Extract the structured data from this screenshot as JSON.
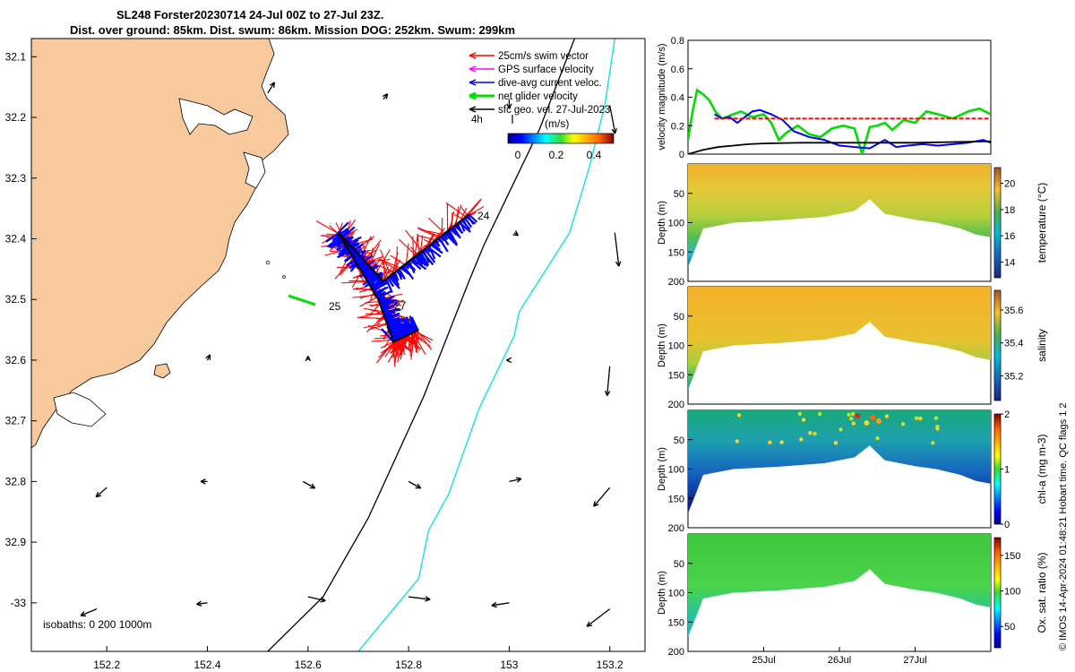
{
  "title": {
    "line1": "SL248 Forster20230714 24-Jul 00Z to 27-Jul 23Z.",
    "line2": "Dist. over ground: 85km. Dist. swum: 86km. Mission DOG: 252km. Swum: 299km"
  },
  "footer_text": "© IMOS 14-Apr-2024 01:48:21 Hobart time. QC flags 1  2",
  "colors": {
    "land": "#f8c99c",
    "swim_vector": "#ff0000",
    "gps_velocity": "#ff00ff",
    "current": "#0000ff",
    "net_velocity": "#00dd00",
    "geo_velocity": "#000000",
    "isobath_200": "#000000",
    "isobath_1000": "#00e5e5",
    "threshold_line": "#ff0000"
  },
  "chart_data": [
    {
      "type": "scatter",
      "panel": "map",
      "x_ticks": [
        "152.2",
        "152.4",
        "152.6",
        "152.8",
        "153",
        "153.2"
      ],
      "y_ticks": [
        "32.1",
        "32.2",
        "32.3",
        "32.4",
        "32.5",
        "32.6",
        "32.7",
        "32.8",
        "32.9",
        "-33"
      ],
      "xlim": [
        152.05,
        153.27
      ],
      "ylim": [
        32.07,
        33.08
      ],
      "legend_position": "top-right",
      "legend": [
        {
          "label": "25cm/s swim vector",
          "color": "#ff0000"
        },
        {
          "label": "GPS surface velocity",
          "color": "#ff00ff"
        },
        {
          "label": "dive-avg current veloc.",
          "color": "#0000ff"
        },
        {
          "label": "net glider velocity",
          "color": "#00dd00"
        },
        {
          "label": "sfc geo. vel. 27-Jul-2023",
          "color": "#000000"
        }
      ],
      "colorbar": {
        "label": "(m/s)",
        "ticks": [
          "0",
          "0.2",
          "0.4"
        ],
        "range": [
          -0.02,
          0.5
        ]
      },
      "scale_label": "4h",
      "isobaths_label": "isobaths: 0   200  1000m",
      "track_labels": [
        "24",
        "25",
        "27"
      ],
      "glider_track": [
        {
          "lon": 152.92,
          "lat": 32.36
        },
        {
          "lon": 152.75,
          "lat": 32.47
        },
        {
          "lon": 152.66,
          "lat": 32.39
        },
        {
          "lon": 152.74,
          "lat": 32.5
        },
        {
          "lon": 152.77,
          "lat": 32.57
        },
        {
          "lon": 152.82,
          "lat": 32.55
        }
      ],
      "isobath_200m": [
        {
          "lon": 153.13,
          "lat": 32.07
        },
        {
          "lon": 153.06,
          "lat": 32.22
        },
        {
          "lon": 152.95,
          "lat": 32.41
        },
        {
          "lon": 152.92,
          "lat": 32.47
        },
        {
          "lon": 152.83,
          "lat": 32.66
        },
        {
          "lon": 152.72,
          "lat": 32.86
        },
        {
          "lon": 152.63,
          "lat": 32.99
        },
        {
          "lon": 152.52,
          "lat": 33.08
        }
      ],
      "isobath_1000m": [
        {
          "lon": 153.21,
          "lat": 32.07
        },
        {
          "lon": 153.19,
          "lat": 32.18
        },
        {
          "lon": 153.16,
          "lat": 32.28
        },
        {
          "lon": 153.12,
          "lat": 32.39
        },
        {
          "lon": 153.02,
          "lat": 32.52
        },
        {
          "lon": 153.01,
          "lat": 32.56
        },
        {
          "lon": 152.94,
          "lat": 32.68
        },
        {
          "lon": 152.88,
          "lat": 32.82
        },
        {
          "lon": 152.84,
          "lat": 32.88
        },
        {
          "lon": 152.82,
          "lat": 32.96
        },
        {
          "lon": 152.78,
          "lat": 33.0
        },
        {
          "lon": 152.7,
          "lat": 33.08
        }
      ],
      "geo_vectors": [
        {
          "lon": 152.52,
          "lat": 32.16,
          "u": 0.05,
          "v": -0.08
        },
        {
          "lon": 152.75,
          "lat": 32.17,
          "u": 0.03,
          "v": -0.04
        },
        {
          "lon": 153.0,
          "lat": 32.17,
          "u": 0.0,
          "v": 0.07
        },
        {
          "lon": 153.2,
          "lat": 32.18,
          "u": 0.04,
          "v": 0.21
        },
        {
          "lon": 153.01,
          "lat": 32.39,
          "u": 0.03,
          "v": 0.02
        },
        {
          "lon": 153.21,
          "lat": 32.39,
          "u": 0.03,
          "v": 0.25
        },
        {
          "lon": 152.4,
          "lat": 32.6,
          "u": 0.02,
          "v": -0.04
        },
        {
          "lon": 152.6,
          "lat": 32.6,
          "u": 0.0,
          "v": -0.03
        },
        {
          "lon": 153.0,
          "lat": 32.6,
          "u": -0.02,
          "v": 0.0
        },
        {
          "lon": 153.2,
          "lat": 32.61,
          "u": -0.02,
          "v": 0.22
        },
        {
          "lon": 152.2,
          "lat": 32.81,
          "u": -0.08,
          "v": 0.07
        },
        {
          "lon": 152.4,
          "lat": 32.8,
          "u": -0.05,
          "v": 0.0
        },
        {
          "lon": 152.59,
          "lat": 32.8,
          "u": 0.09,
          "v": 0.05
        },
        {
          "lon": 152.8,
          "lat": 32.8,
          "u": 0.09,
          "v": 0.05
        },
        {
          "lon": 153.0,
          "lat": 32.8,
          "u": 0.09,
          "v": -0.02
        },
        {
          "lon": 153.2,
          "lat": 32.81,
          "u": -0.12,
          "v": 0.14
        },
        {
          "lon": 152.18,
          "lat": 33.01,
          "u": -0.12,
          "v": 0.05
        },
        {
          "lon": 152.4,
          "lat": 33.0,
          "u": -0.08,
          "v": 0.01
        },
        {
          "lon": 152.6,
          "lat": 32.99,
          "u": 0.13,
          "v": 0.03
        },
        {
          "lon": 152.8,
          "lat": 32.99,
          "u": 0.16,
          "v": 0.02
        },
        {
          "lon": 153.0,
          "lat": 33.0,
          "u": -0.13,
          "v": 0.02
        },
        {
          "lon": 153.2,
          "lat": 33.01,
          "u": -0.17,
          "v": 0.13
        }
      ]
    },
    {
      "type": "line",
      "panel": "velocity",
      "ylabel": "velocity magnitude (m/s)",
      "ylim": [
        0,
        0.8
      ],
      "y_ticks": [
        "0",
        "0.2",
        "0.4",
        "0.6",
        "0.8"
      ],
      "xlim": [
        0,
        4
      ],
      "series": [
        {
          "color": "#00dd00",
          "x": [
            0,
            0.06,
            0.12,
            0.2,
            0.28,
            0.36,
            0.45,
            0.55,
            0.7,
            0.85,
            1.0,
            1.1,
            1.2,
            1.3,
            1.45,
            1.6,
            1.75,
            1.9,
            2.05,
            2.2,
            2.3,
            2.4,
            2.5,
            2.6,
            2.7,
            2.85,
            3.0,
            3.15,
            3.3,
            3.5,
            3.7,
            3.85,
            4.0
          ],
          "y": [
            0.1,
            0.3,
            0.45,
            0.42,
            0.38,
            0.3,
            0.25,
            0.27,
            0.3,
            0.26,
            0.28,
            0.22,
            0.1,
            0.15,
            0.2,
            0.14,
            0.12,
            0.18,
            0.2,
            0.18,
            0.0,
            0.19,
            0.2,
            0.22,
            0.17,
            0.24,
            0.22,
            0.3,
            0.28,
            0.25,
            0.3,
            0.32,
            0.28
          ]
        },
        {
          "color": "#0000ff",
          "x": [
            0.35,
            0.45,
            0.55,
            0.65,
            0.75,
            0.85,
            0.95,
            1.1,
            1.25,
            1.4,
            1.6,
            1.8,
            2.0,
            2.2,
            2.4,
            2.6,
            2.75,
            2.9,
            3.1,
            3.3,
            3.5,
            3.7,
            3.9,
            4.0
          ],
          "y": [
            0.28,
            0.25,
            0.26,
            0.22,
            0.26,
            0.3,
            0.31,
            0.28,
            0.24,
            0.16,
            0.12,
            0.1,
            0.06,
            0.05,
            0.04,
            0.1,
            0.05,
            0.06,
            0.07,
            0.06,
            0.07,
            0.08,
            0.1,
            0.08
          ]
        },
        {
          "color": "#000000",
          "x": [
            0.0,
            0.2,
            0.4,
            0.6,
            0.8,
            1.0,
            1.5,
            2.0,
            2.5,
            3.0,
            3.5,
            4.0
          ],
          "y": [
            0.0,
            0.03,
            0.05,
            0.06,
            0.07,
            0.075,
            0.08,
            0.08,
            0.08,
            0.08,
            0.085,
            0.09
          ]
        },
        {
          "color": "#ff0000",
          "x": [
            0.35,
            4.0
          ],
          "y": [
            0.25,
            0.25
          ]
        }
      ]
    },
    {
      "type": "heatmap",
      "panel": "temperature",
      "ylabel": "Depth (m)",
      "colorbar_label": "temperature (°C)",
      "ylim": [
        200,
        0
      ],
      "y_ticks": [
        "50",
        "100",
        "150",
        "200"
      ],
      "colorbar_ticks": [
        "14",
        "16",
        "18",
        "20"
      ],
      "colorbar_range": [
        12.8,
        21.2
      ]
    },
    {
      "type": "heatmap",
      "panel": "salinity",
      "ylabel": "Depth (m)",
      "colorbar_label": "salinity",
      "ylim": [
        200,
        0
      ],
      "y_ticks": [
        "50",
        "100",
        "150",
        "200"
      ],
      "colorbar_ticks": [
        "35.2",
        "35.4",
        "35.6"
      ],
      "colorbar_range": [
        35.05,
        35.72
      ]
    },
    {
      "type": "heatmap",
      "panel": "chlorophyll",
      "ylabel": "Depth (m)",
      "colorbar_label": "chl-a (mg m-3)",
      "ylim": [
        200,
        0
      ],
      "y_ticks": [
        "50",
        "100",
        "150",
        "200"
      ],
      "colorbar_ticks": [
        "0",
        "1",
        "2"
      ],
      "colorbar_range": [
        0,
        2
      ]
    },
    {
      "type": "heatmap",
      "panel": "oxygen",
      "ylabel": "Depth (m)",
      "colorbar_label": "Ox. sat. ratio (%)",
      "ylim": [
        200,
        0
      ],
      "y_ticks": [
        "50",
        "100",
        "150",
        "200"
      ],
      "colorbar_ticks": [
        "50",
        "100",
        "150"
      ],
      "colorbar_range": [
        20,
        175
      ],
      "x_ticks": [
        "25Jul",
        "26Jul",
        "27Jul"
      ]
    }
  ]
}
